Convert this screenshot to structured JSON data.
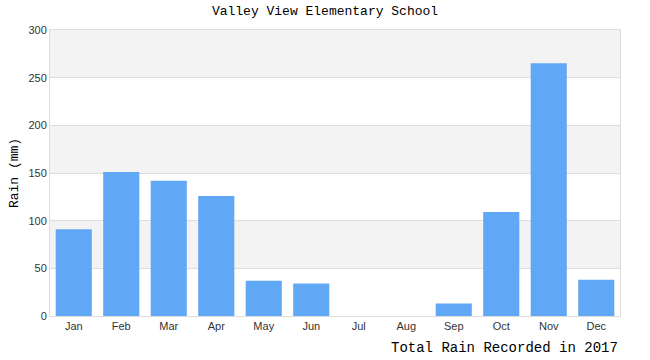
{
  "chart_data": {
    "type": "bar",
    "title": "Valley View Elementary School",
    "ylabel": "Rain (mm)",
    "xlabel": "Total Rain Recorded in 2017",
    "categories": [
      "Jan",
      "Feb",
      "Mar",
      "Apr",
      "May",
      "Jun",
      "Jul",
      "Aug",
      "Sep",
      "Oct",
      "Nov",
      "Dec"
    ],
    "values": [
      91,
      151,
      142,
      126,
      37,
      34,
      0,
      0,
      13,
      109,
      265,
      38
    ],
    "color": "#60a8f5",
    "ylim": [
      0,
      300
    ],
    "yticks": [
      0,
      50,
      100,
      150,
      200,
      250,
      300
    ],
    "grid": true
  }
}
